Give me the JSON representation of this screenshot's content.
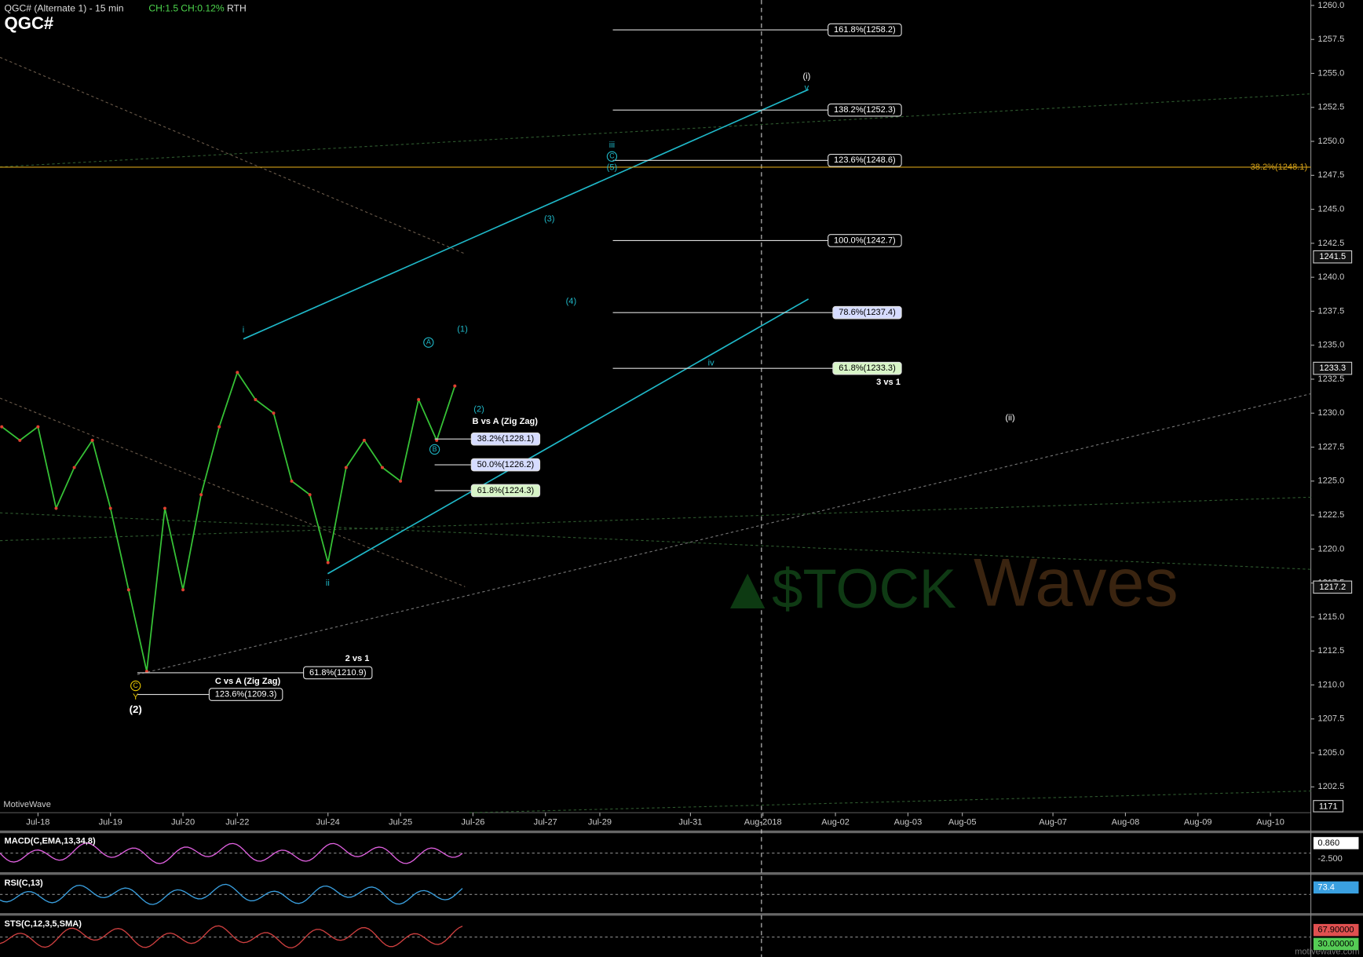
{
  "chart_data": {
    "type": "line",
    "title": "QGC# (Alternate 1) - 15 min",
    "symbol": "QGC#",
    "change": "CH:1.5",
    "change_pct": "CH:0.12%",
    "session": "RTH",
    "brand": "MotiveWave",
    "site": "motivewave.com",
    "watermark": [
      "$TOCK",
      "Waves"
    ],
    "categories": [
      null,
      null,
      "Jul-18",
      null,
      null,
      null,
      "Jul-19",
      null,
      null,
      null,
      "Jul-20",
      null,
      null,
      "Jul-22",
      null,
      null,
      null,
      null,
      "Jul-24",
      null,
      null,
      null,
      "Jul-25",
      null,
      null,
      null,
      "Jul-26",
      null,
      null,
      null,
      "Jul-27",
      null,
      null,
      "Jul-29",
      null,
      null,
      null,
      null,
      "Jul-31",
      null,
      null,
      null,
      "Aug-2018",
      null,
      null,
      null,
      "Aug-02",
      null,
      null,
      null,
      "Aug-03",
      null,
      null,
      "Aug-05",
      null,
      null,
      null,
      null,
      "Aug-07",
      null,
      null,
      null,
      "Aug-08",
      null,
      null,
      null,
      "Aug-09",
      null,
      null,
      null,
      "Aug-10",
      null
    ],
    "color": "#36c236",
    "values": [
      1229,
      1228,
      1229,
      1223,
      1226,
      1228,
      1223,
      1217,
      1211,
      1223,
      1217,
      1224,
      1229,
      1233,
      1231,
      1230,
      1225,
      1224,
      1219,
      1226,
      1228,
      1226,
      1225,
      1231,
      1228,
      1232,
      null,
      null,
      null,
      null,
      null,
      null,
      null,
      null,
      null,
      null,
      null,
      null,
      null,
      null,
      null,
      null,
      null,
      null,
      null,
      null,
      null,
      null,
      null,
      null,
      null,
      null,
      null,
      null,
      null,
      null,
      null,
      null,
      null,
      null,
      null,
      null,
      null,
      null,
      null,
      null,
      null,
      null,
      null,
      null,
      null,
      null
    ],
    "ylim": [
      1200.6,
      1260.4
    ],
    "yticks": [
      {
        "value": 1202.5,
        "label": "1202.5"
      },
      {
        "value": 1205,
        "label": "1205.0"
      },
      {
        "value": 1207.5,
        "label": "1207.5"
      },
      {
        "value": 1210,
        "label": "1210.0"
      },
      {
        "value": 1212.5,
        "label": "1212.5"
      },
      {
        "value": 1215,
        "label": "1215.0"
      },
      {
        "value": 1217.5,
        "label": "1217.5"
      },
      {
        "value": 1220,
        "label": "1220.0"
      },
      {
        "value": 1222.5,
        "label": "1222.5"
      },
      {
        "value": 1225,
        "label": "1225.0"
      },
      {
        "value": 1227.5,
        "label": "1227.5"
      },
      {
        "value": 1230,
        "label": "1230.0"
      },
      {
        "value": 1232.5,
        "label": "1232.5"
      },
      {
        "value": 1235,
        "label": "1235.0"
      },
      {
        "value": 1237.5,
        "label": "1237.5"
      },
      {
        "value": 1240,
        "label": "1240.0"
      },
      {
        "value": 1242.5,
        "label": "1242.5"
      },
      {
        "value": 1245,
        "label": "1245.0"
      },
      {
        "value": 1247.5,
        "label": "1247.5"
      },
      {
        "value": 1250,
        "label": "1250.0"
      },
      {
        "value": 1252.5,
        "label": "1252.5"
      },
      {
        "value": 1255,
        "label": "1255.0"
      },
      {
        "value": 1257.5,
        "label": "1257.5"
      },
      {
        "value": 1260,
        "label": "1260.0"
      }
    ],
    "price_labels": [
      1241.5,
      1233.3,
      1217.2
    ],
    "volume_label": "1171",
    "retracement": {
      "value": 1248.1,
      "label": "38.2%(1248.1)",
      "color": "#d4a017"
    },
    "fib_projection": {
      "note": "3 vs 1",
      "levels": [
        {
          "value": 1258.2,
          "label": "161.8%(1258.2)"
        },
        {
          "value": 1252.3,
          "label": "138.2%(1252.3)"
        },
        {
          "value": 1248.6,
          "label": "123.6%(1248.6)"
        },
        {
          "value": 1242.7,
          "label": "100.0%(1242.7)"
        },
        {
          "value": 1237.4,
          "label": "78.6%(1237.4)"
        },
        {
          "value": 1233.3,
          "label": "61.8%(1233.3)"
        }
      ]
    },
    "fib_b_vs_a": {
      "note": "B vs A (Zig Zag)",
      "levels": [
        {
          "value": 1228.1,
          "label": "38.2%(1228.1)"
        },
        {
          "value": 1226.2,
          "label": "50.0%(1226.2)"
        },
        {
          "value": 1224.3,
          "label": "61.8%(1224.3)"
        }
      ]
    },
    "fib_2_vs_1": {
      "note": "2 vs 1",
      "levels": [
        {
          "value": 1210.9,
          "label": "61.8%(1210.9)"
        }
      ]
    },
    "fib_c_vs_a": {
      "note": "C vs A (Zig Zag)",
      "levels": [
        {
          "value": 1209.3,
          "label": "123.6%(1209.3)"
        }
      ]
    },
    "wave_labels": [
      "(i)",
      "v",
      "iii",
      "C",
      "(5)",
      "(3)",
      "(4)",
      "(1)",
      "A",
      "(2)",
      "B",
      "i",
      "ii",
      "iv",
      "(ii)",
      "C",
      "Y",
      "(2)"
    ],
    "indicators": [
      {
        "title": "MACD(C,EMA,13,34,8)",
        "labels": [
          "0.860",
          "-2.500"
        ]
      },
      {
        "title": "RSI(C,13)",
        "labels": [
          "73.4"
        ]
      },
      {
        "title": "STS(C,12,3,5,SMA)",
        "labels": [
          "67.90000",
          "30.00000"
        ]
      }
    ]
  }
}
